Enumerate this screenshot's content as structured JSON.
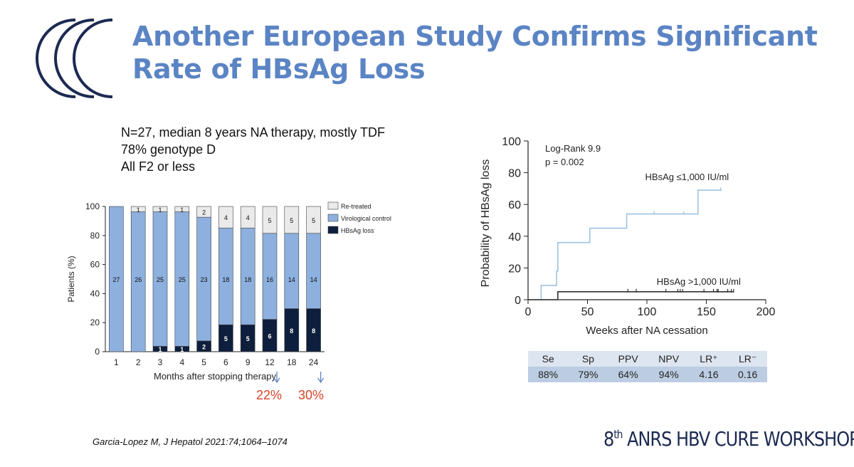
{
  "slide": {
    "title": "Another European Study Confirms Significant Rate of HBsAg Loss",
    "bullets": [
      "N=27, median 8 years NA therapy, mostly TDF",
      "78% genotype D",
      "All F2 or less"
    ],
    "callouts": [
      "22%",
      "30%"
    ],
    "citation": "Garcia-Lopez M, J Hepatol 2021:74;1064–1074",
    "footer": {
      "prefix": "8",
      "sup": "th",
      "rest": " ANRS HBV CURE WORKSHOP"
    },
    "colors": {
      "title": "#5b84c4",
      "logo": "#1c2a52",
      "callout": "#d9452b"
    }
  },
  "chart_data": [
    {
      "type": "bar",
      "stacked": true,
      "ylabel": "Patients (%)",
      "xlabel": "Months after stopping therapy",
      "ylim": [
        0,
        100
      ],
      "yticks": [
        0,
        20,
        40,
        60,
        80,
        100
      ],
      "categories": [
        "1",
        "2",
        "3",
        "4",
        "5",
        "6",
        "9",
        "12",
        "18",
        "24"
      ],
      "total_n": 27,
      "series": [
        {
          "name": "HBsAg loss",
          "counts": [
            0,
            0,
            1,
            1,
            2,
            5,
            5,
            6,
            8,
            8
          ],
          "color": "#0d1f3c"
        },
        {
          "name": "Virological control",
          "counts": [
            27,
            26,
            25,
            25,
            23,
            18,
            18,
            16,
            14,
            14
          ],
          "color": "#8db0de"
        },
        {
          "name": "Re-treated",
          "counts": [
            0,
            1,
            1,
            1,
            2,
            4,
            4,
            5,
            5,
            5
          ],
          "color": "#eaeaea"
        }
      ],
      "arrow_categories": [
        "12",
        "24"
      ],
      "legend_position": "right"
    },
    {
      "type": "line",
      "subtype": "kaplan-meier",
      "xlabel": "Weeks after NA cessation",
      "ylabel": "Probability of HBsAg loss",
      "xlim": [
        0,
        200
      ],
      "ylim": [
        0,
        100
      ],
      "xticks": [
        0,
        50,
        100,
        150,
        200
      ],
      "yticks": [
        0,
        20,
        40,
        60,
        80,
        100
      ],
      "annotations": [
        "Log-Rank 9.9",
        "p = 0.002"
      ],
      "series": [
        {
          "name": "HBsAg ≤1,000 IU/ml",
          "color": "#9ec3e3",
          "steps": [
            [
              11,
              0
            ],
            [
              11,
              9
            ],
            [
              24,
              9
            ],
            [
              24,
              18
            ],
            [
              25,
              18
            ],
            [
              25,
              36
            ],
            [
              52,
              36
            ],
            [
              52,
              45
            ],
            [
              83,
              45
            ],
            [
              83,
              54
            ],
            [
              143,
              54
            ],
            [
              143,
              69
            ],
            [
              163,
              69
            ]
          ],
          "censor_x": [
            106,
            131,
            162
          ]
        },
        {
          "name": "HBsAg >1,000 IU/ml",
          "color": "#333333",
          "steps": [
            [
              0,
              0
            ],
            [
              25,
              0
            ],
            [
              25,
              5
            ],
            [
              173,
              5
            ]
          ],
          "censor_x": [
            84,
            91,
            116,
            126,
            128,
            130,
            148,
            156,
            159,
            160,
            168,
            171,
            173
          ]
        }
      ]
    }
  ],
  "stats_table": {
    "headers": [
      "Se",
      "Sp",
      "PPV",
      "NPV",
      "LR⁺",
      "LR⁻"
    ],
    "values": [
      "88%",
      "79%",
      "64%",
      "94%",
      "4.16",
      "0.16"
    ]
  }
}
